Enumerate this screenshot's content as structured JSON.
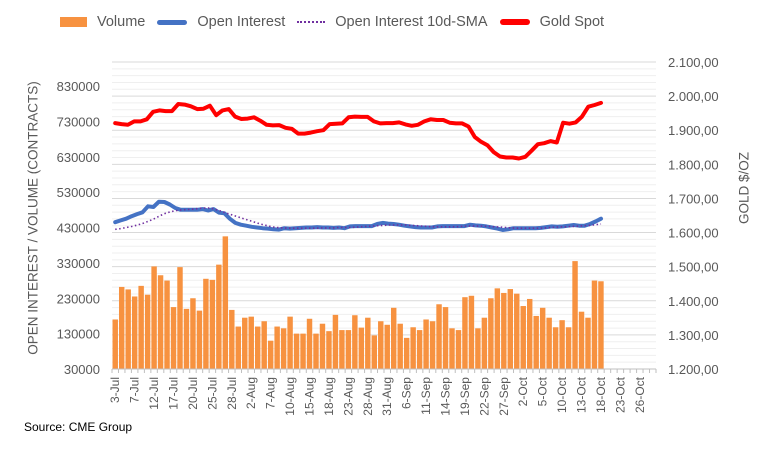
{
  "chart_data": {
    "type": "bar+line",
    "title": "",
    "source": "Source: CME Group",
    "legend": {
      "placement": "top",
      "entries": [
        "Volume",
        "Open Interest",
        "Open Interest 10d-SMA",
        "Gold Spot"
      ]
    },
    "y_left": {
      "label": "OPEN INTEREST / VOLUME (CONTRACTS)",
      "range": [
        30000,
        830000
      ],
      "ticks": [
        "830000",
        "730000",
        "630000",
        "530000",
        "430000",
        "330000",
        "230000",
        "130000",
        "30000"
      ],
      "tick_values": [
        830000,
        730000,
        630000,
        530000,
        430000,
        330000,
        230000,
        130000,
        30000
      ]
    },
    "y_right": {
      "label": "GOLD $/OZ",
      "range": [
        1200,
        2100
      ],
      "ticks": [
        "2.100,00",
        "2.000,00",
        "1.900,00",
        "1.800,00",
        "1.700,00",
        "1.600,00",
        "1.500,00",
        "1.400,00",
        "1.300,00",
        "1.200,00"
      ],
      "tick_values": [
        2100,
        2000,
        1900,
        1800,
        1700,
        1600,
        1500,
        1400,
        1300,
        1200
      ]
    },
    "x_tick_labels": [
      "3-Jul",
      "7-Jul",
      "12-Jul",
      "17-Jul",
      "20-Jul",
      "25-Jul",
      "28-Jul",
      "2-Aug",
      "7-Aug",
      "10-Aug",
      "15-Aug",
      "18-Aug",
      "23-Aug",
      "28-Aug",
      "31-Aug",
      "6-Sep",
      "11-Sep",
      "14-Sep",
      "19-Sep",
      "22-Sep",
      "27-Sep",
      "2-Oct",
      "5-Oct",
      "10-Oct",
      "13-Oct",
      "18-Oct",
      "23-Oct",
      "26-Oct"
    ],
    "n_slots": 84,
    "grid": true,
    "series": [
      {
        "name": "Volume",
        "type": "bar",
        "axis": "left",
        "color": "#f79240",
        "values": [
          170000,
          262000,
          255000,
          235000,
          265000,
          240000,
          320000,
          295000,
          280000,
          205000,
          318000,
          200000,
          230000,
          195000,
          285000,
          282000,
          325000,
          405000,
          197000,
          150000,
          175000,
          178000,
          150000,
          165000,
          110000,
          150000,
          145000,
          178000,
          130000,
          130000,
          172000,
          130000,
          158000,
          137000,
          183000,
          140000,
          140000,
          182000,
          147000,
          175000,
          125000,
          165000,
          155000,
          203000,
          158000,
          118000,
          148000,
          140000,
          170000,
          165000,
          213000,
          205000,
          145000,
          140000,
          233000,
          237000,
          145000,
          175000,
          230000,
          258000,
          245000,
          256000,
          243000,
          208000,
          228000,
          180000,
          203000,
          175000,
          148000,
          168000,
          148000,
          335000,
          192000,
          175000,
          280000,
          278000
        ]
      },
      {
        "name": "Open Interest",
        "type": "line",
        "axis": "left",
        "color": "#4472c4",
        "values": [
          445000,
          450000,
          455000,
          462000,
          468000,
          473000,
          490000,
          488000,
          503000,
          502000,
          495000,
          485000,
          480000,
          480000,
          480000,
          480000,
          482000,
          478000,
          482000,
          472000,
          470000,
          455000,
          443000,
          438000,
          435000,
          432000,
          430000,
          428000,
          427000,
          425000,
          424000,
          428000,
          427000,
          428000,
          429000,
          430000,
          430000,
          431000,
          430000,
          430000,
          429000,
          430000,
          428000,
          433000,
          434000,
          434000,
          434000,
          434000,
          440000,
          443000,
          441000,
          440000,
          438000,
          435000,
          433000,
          431000,
          430000,
          430000,
          430000,
          433000,
          434000,
          434000,
          434000,
          434000,
          434000,
          438000,
          436000,
          435000,
          433000,
          430000,
          427000,
          423000,
          425000,
          428000,
          428000,
          428000,
          428000,
          428000,
          429000,
          431000,
          433000,
          432000,
          433000,
          435000,
          437000,
          435000,
          435000,
          440000,
          447000,
          455000
        ]
      },
      {
        "name": "Open Interest 10d-SMA",
        "type": "line",
        "axis": "left",
        "color": "#7030a0",
        "values": [
          425000,
          427000,
          430000,
          433000,
          437000,
          442000,
          448000,
          455000,
          463000,
          470000,
          475000,
          478000,
          480000,
          481000,
          482000,
          484000,
          485000,
          485000,
          481000,
          476000,
          470000,
          465000,
          460000,
          455000,
          450000,
          445000,
          440000,
          436000,
          432000,
          430000,
          429000,
          428000,
          428000,
          428000,
          428000,
          428000,
          428000,
          429000,
          429000,
          429000,
          430000,
          430000,
          430000,
          431000,
          432000,
          433000,
          434000,
          435000,
          436000,
          437000,
          437000,
          437000,
          437000,
          436000,
          435000,
          434000,
          433000,
          432000,
          432000,
          432000,
          432000,
          432000,
          433000,
          434000,
          434000,
          434000,
          434000,
          433000,
          432000,
          431000,
          430000,
          429000,
          428000,
          428000,
          428000,
          428000,
          428000,
          429000,
          430000,
          431000,
          432000,
          432000,
          433000,
          434000,
          435000,
          436000,
          438000,
          440000
        ]
      },
      {
        "name": "Gold Spot",
        "type": "line",
        "axis": "right",
        "color": "#ff0000",
        "values": [
          1921,
          1918,
          1916,
          1926,
          1926,
          1932,
          1954,
          1958,
          1956,
          1956,
          1977,
          1975,
          1970,
          1962,
          1963,
          1972,
          1944,
          1958,
          1962,
          1940,
          1933,
          1934,
          1938,
          1928,
          1916,
          1914,
          1915,
          1907,
          1904,
          1890,
          1890,
          1893,
          1897,
          1900,
          1918,
          1919,
          1920,
          1938,
          1940,
          1939,
          1939,
          1926,
          1920,
          1921,
          1921,
          1923,
          1917,
          1913,
          1916,
          1926,
          1932,
          1930,
          1930,
          1922,
          1920,
          1920,
          1911,
          1880,
          1866,
          1856,
          1836,
          1823,
          1820,
          1820,
          1817,
          1822,
          1840,
          1859,
          1862,
          1868,
          1864,
          1922,
          1919,
          1923,
          1940,
          1969,
          1974,
          1980
        ]
      }
    ]
  }
}
